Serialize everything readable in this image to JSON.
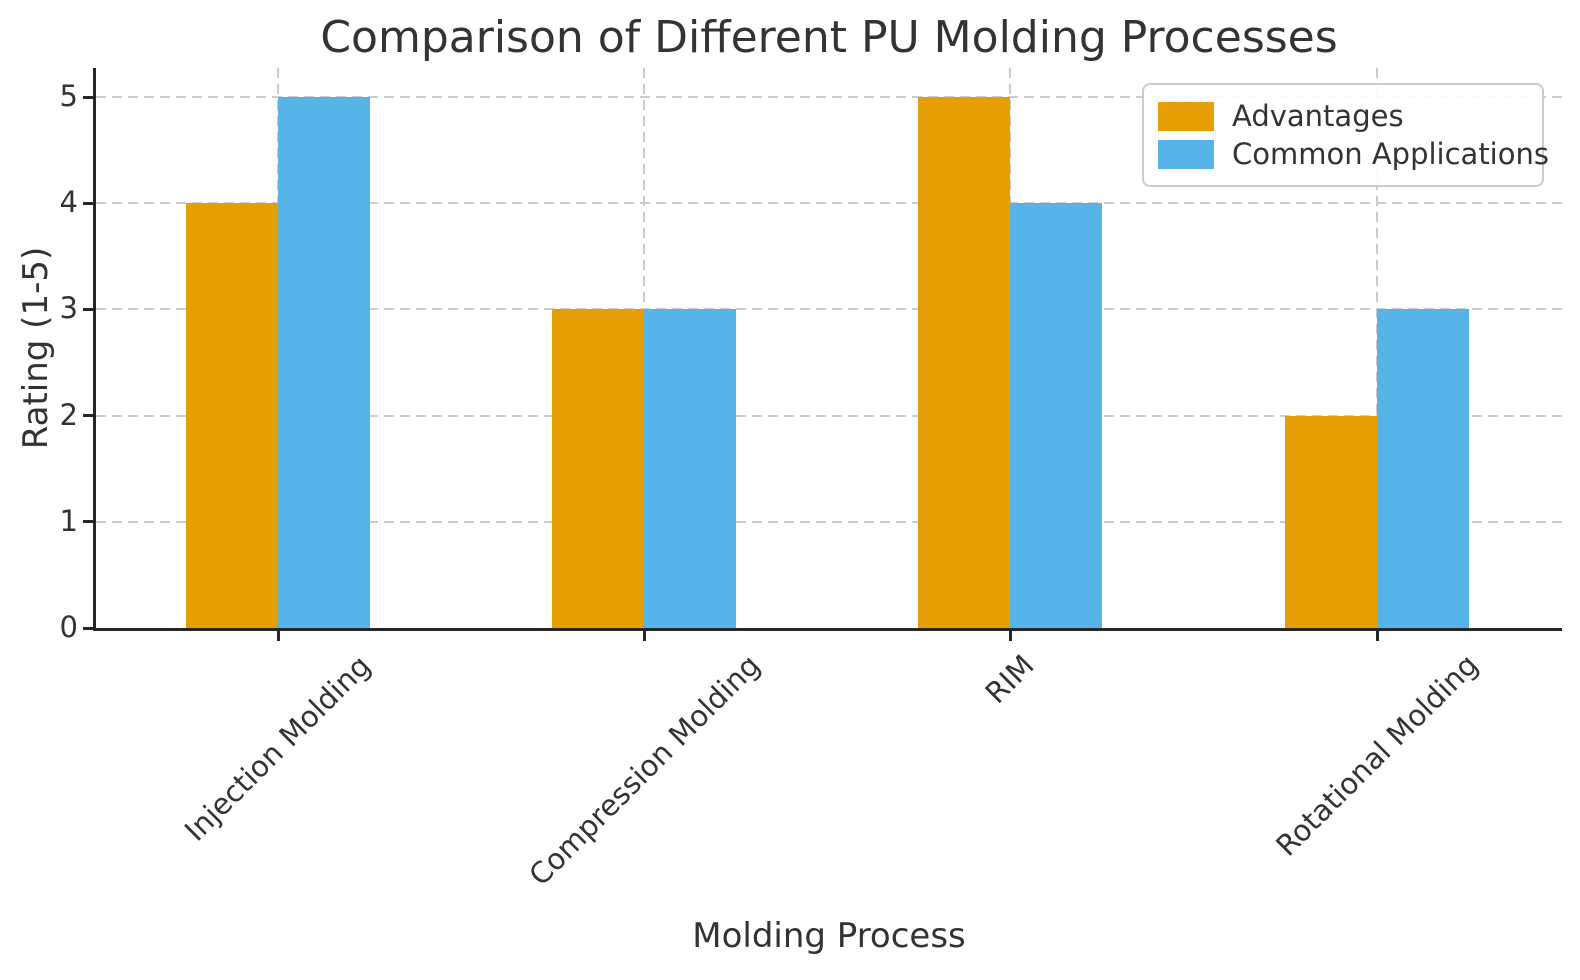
{
  "chart_data": {
    "type": "bar",
    "title": "Comparison of Different PU Molding Processes",
    "xlabel": "Molding Process",
    "ylabel": "Rating (1-5)",
    "categories": [
      "Injection Molding",
      "Compression Molding",
      "RIM",
      "Rotational Molding"
    ],
    "series": [
      {
        "name": "Advantages",
        "color": "#E69F00",
        "values": [
          4,
          3,
          5,
          2
        ]
      },
      {
        "name": "Common Applications",
        "color": "#56B4E9",
        "values": [
          5,
          3,
          4,
          3
        ]
      }
    ],
    "yticks": [
      0,
      1,
      2,
      3,
      4,
      5
    ],
    "ylim": [
      0,
      5.27
    ],
    "grid": "dashed",
    "legend_position": "upper right"
  }
}
